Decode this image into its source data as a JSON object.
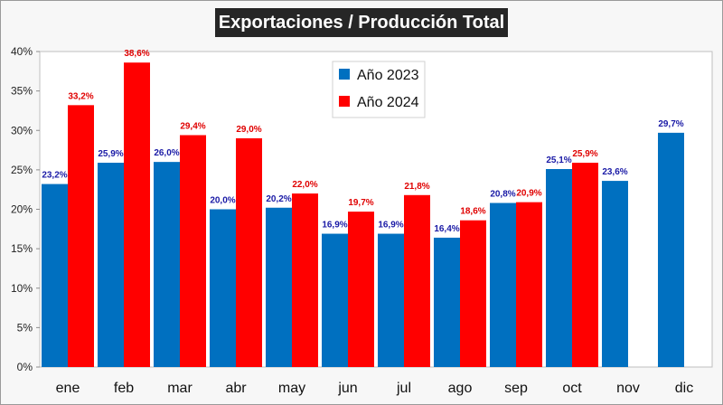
{
  "chart_data": {
    "type": "bar",
    "title": "Exportaciones / Producción Total",
    "categories": [
      "ene",
      "feb",
      "mar",
      "abr",
      "may",
      "jun",
      "jul",
      "ago",
      "sep",
      "oct",
      "nov",
      "dic"
    ],
    "series": [
      {
        "name": "Año 2023",
        "color": "#0070c0",
        "label_color": "#1a1aa6",
        "values": [
          23.2,
          25.9,
          26.0,
          20.0,
          20.2,
          16.9,
          16.9,
          16.4,
          20.8,
          25.1,
          23.6,
          29.7
        ],
        "labels": [
          "23,2%",
          "25,9%",
          "26,0%",
          "20,0%",
          "20,2%",
          "16,9%",
          "16,9%",
          "16,4%",
          "20,8%",
          "25,1%",
          "23,6%",
          "29,7%"
        ]
      },
      {
        "name": "Año 2024",
        "color": "#ff0000",
        "label_color": "#e00000",
        "values": [
          33.2,
          38.6,
          29.4,
          29.0,
          22.0,
          19.7,
          21.8,
          18.6,
          20.9,
          25.9,
          null,
          null
        ],
        "labels": [
          "33,2%",
          "38,6%",
          "29,4%",
          "29,0%",
          "22,0%",
          "19,7%",
          "21,8%",
          "18,6%",
          "20,9%",
          "25,9%",
          "",
          ""
        ]
      }
    ],
    "yticks": [
      "0%",
      "5%",
      "10%",
      "15%",
      "20%",
      "25%",
      "30%",
      "35%",
      "40%"
    ],
    "ylim": [
      0,
      40
    ],
    "grid": false,
    "legend_position": "top-center"
  }
}
